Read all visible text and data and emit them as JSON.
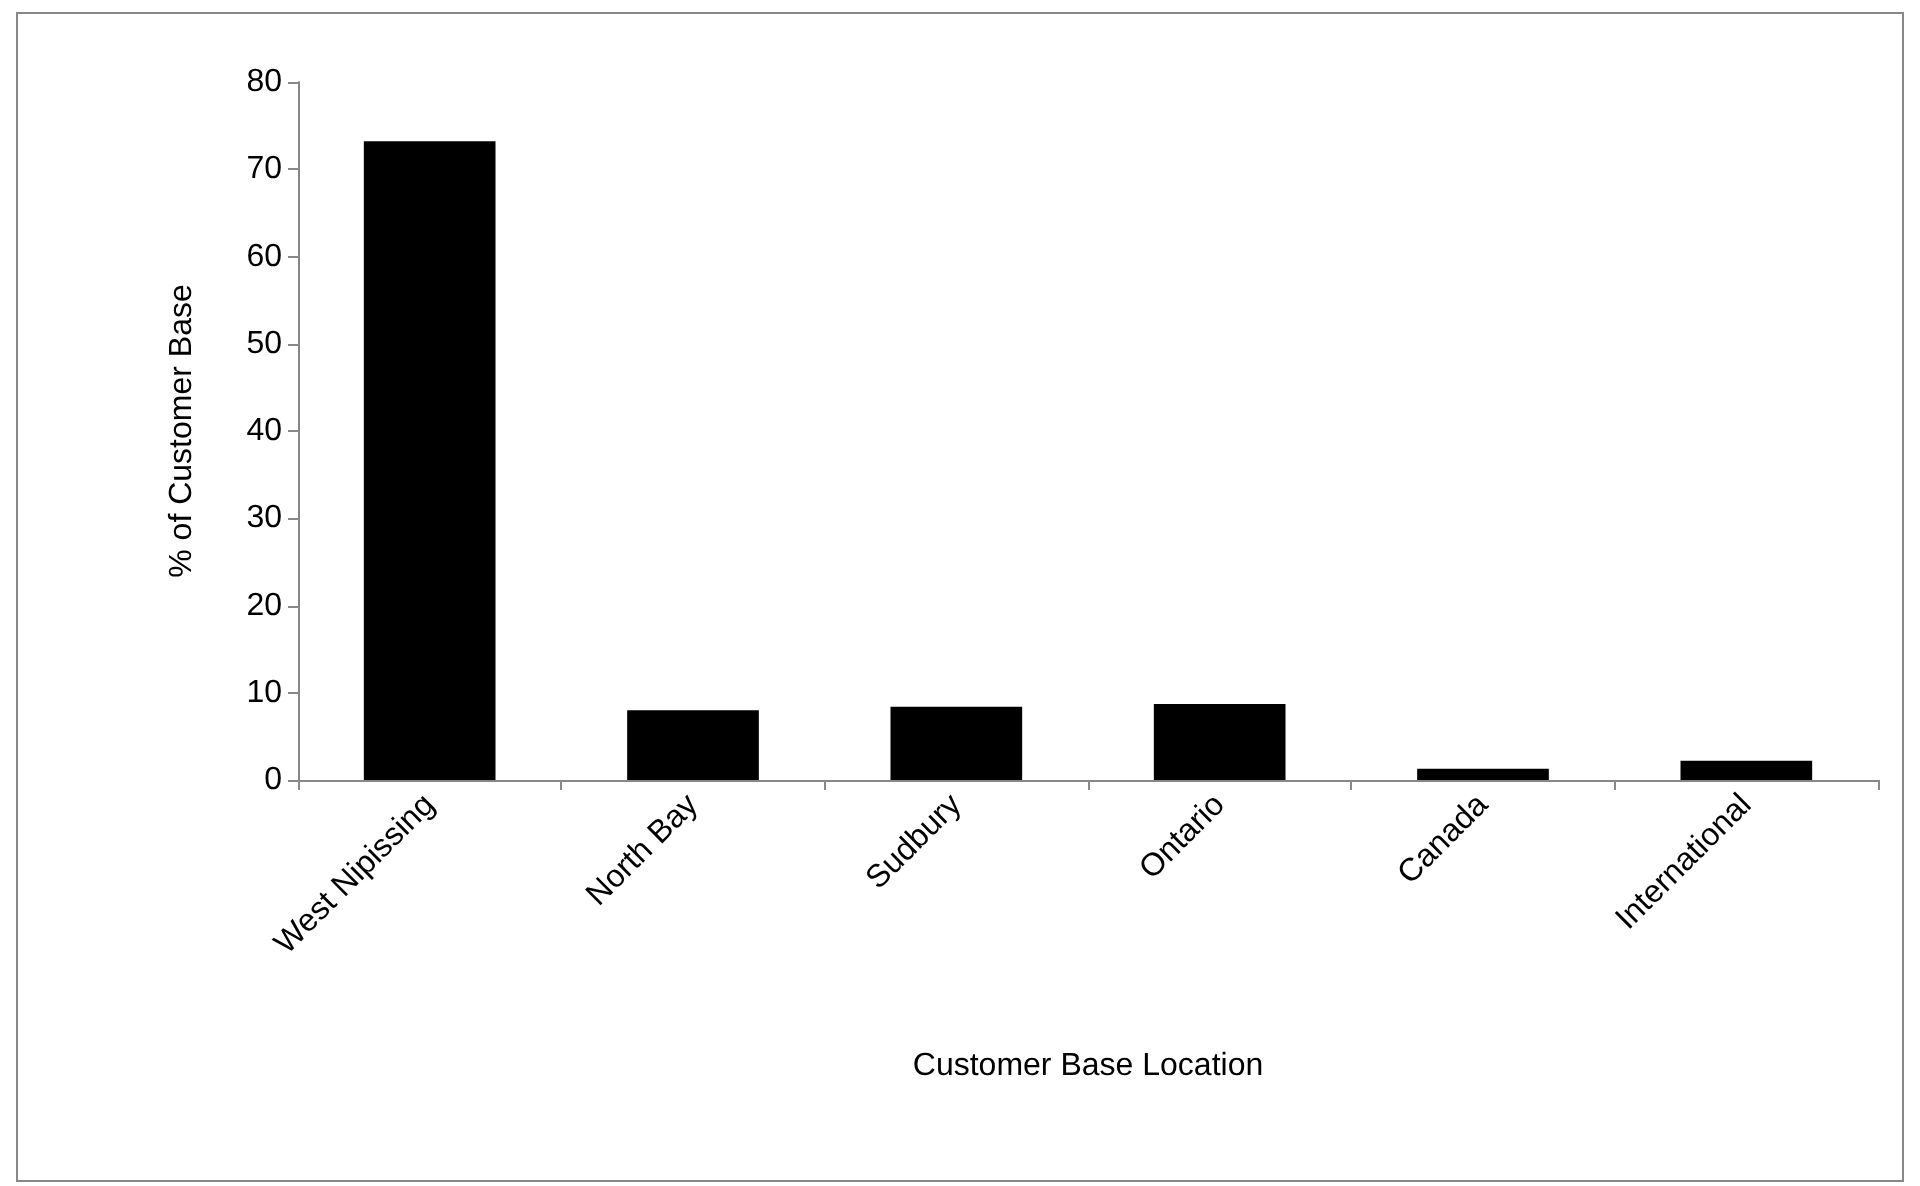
{
  "chart_data": {
    "type": "bar",
    "xlabel": "Customer Base Location",
    "ylabel": "% of Customer Base",
    "categories": [
      "West Nipissing",
      "North Bay",
      "Sudbury",
      "Ontario",
      "Canada",
      "International"
    ],
    "values": [
      73.2,
      8.0,
      8.4,
      8.7,
      1.3,
      2.2
    ],
    "color": "#000000",
    "ylim": [
      0,
      80
    ],
    "yticks": [
      0,
      10,
      20,
      30,
      40,
      50,
      60,
      70,
      80
    ],
    "grid": false
  }
}
